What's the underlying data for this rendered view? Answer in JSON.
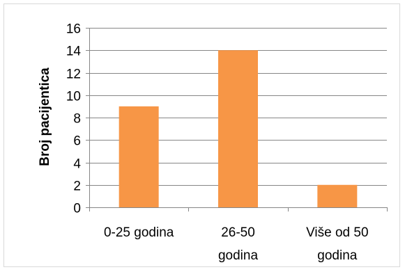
{
  "chart_data": {
    "type": "bar",
    "categories": [
      "0-25 godina",
      "26-50 godina",
      "Više od 50 godina"
    ],
    "category_lines": [
      [
        "0-25 godina"
      ],
      [
        "26-50",
        "godina"
      ],
      [
        "Više od 50",
        "godina"
      ]
    ],
    "values": [
      9,
      14,
      2
    ],
    "title": "",
    "xlabel": "",
    "ylabel": "Broj pacijentica",
    "ylim": [
      0,
      16
    ],
    "yticks": [
      0,
      2,
      4,
      6,
      8,
      10,
      12,
      14,
      16
    ],
    "grid": true,
    "legend": "none",
    "colors": {
      "bar": "#F79646",
      "grid": "#868686",
      "axis": "#868686",
      "border": "#D9D9D9"
    }
  }
}
